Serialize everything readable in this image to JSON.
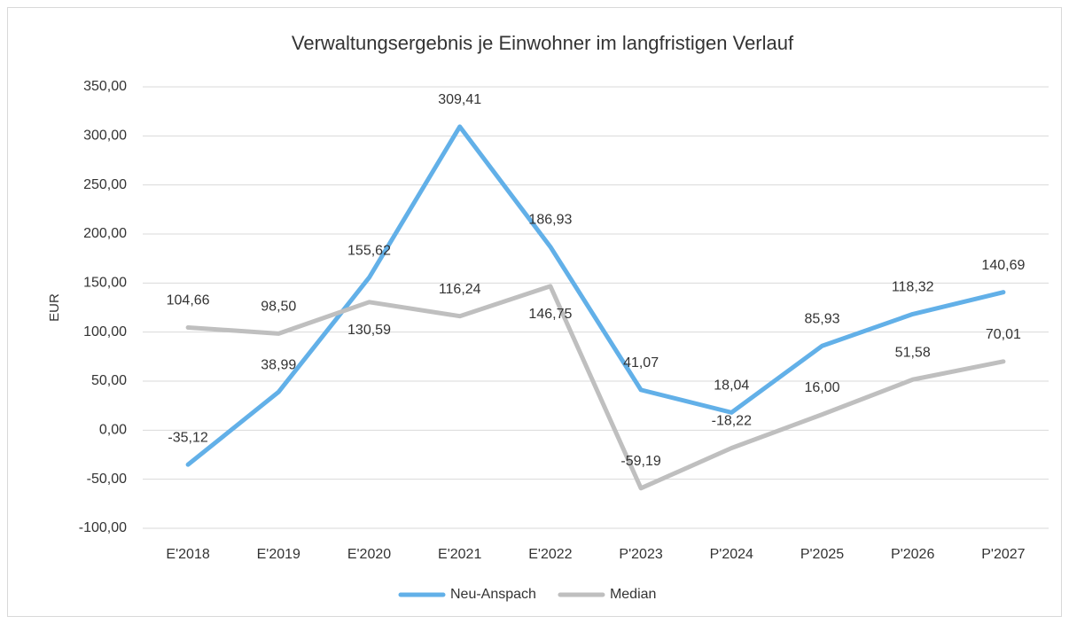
{
  "chart_data": {
    "type": "line",
    "title": "Verwaltungsergebnis je Einwohner im langfristigen Verlauf",
    "y_label": "EUR",
    "categories": [
      "E'2018",
      "E'2019",
      "E'2020",
      "E'2021",
      "E'2022",
      "P'2023",
      "P'2024",
      "P'2025",
      "P'2026",
      "P'2027"
    ],
    "series": [
      {
        "name": "Neu-Anspach",
        "color": "#62b0e8",
        "values": [
          -35.12,
          38.99,
          155.62,
          309.41,
          186.93,
          41.07,
          18.04,
          85.93,
          118.32,
          140.69
        ],
        "value_labels": [
          "-35,12",
          "38,99",
          "155,62",
          "309,41",
          "186,93",
          "41,07",
          "18,04",
          "85,93",
          "118,32",
          "140,69"
        ]
      },
      {
        "name": "Median",
        "color": "#bfbfbf",
        "values": [
          104.66,
          98.5,
          130.59,
          116.24,
          146.75,
          -59.19,
          -18.22,
          16.0,
          51.58,
          70.01
        ],
        "value_labels": [
          "104,66",
          "98,50",
          "130,59",
          "116,24",
          "146,75",
          "-59,19",
          "-18,22",
          "16,00",
          "51,58",
          "70,01"
        ]
      }
    ],
    "ylim": [
      -100,
      350
    ],
    "yticks": [
      {
        "value": -100,
        "label": "-100,00"
      },
      {
        "value": -50,
        "label": "-50,00"
      },
      {
        "value": 0,
        "label": "0,00"
      },
      {
        "value": 50,
        "label": "50,00"
      },
      {
        "value": 100,
        "label": "100,00"
      },
      {
        "value": 150,
        "label": "150,00"
      },
      {
        "value": 200,
        "label": "200,00"
      },
      {
        "value": 250,
        "label": "250,00"
      },
      {
        "value": 300,
        "label": "300,00"
      },
      {
        "value": 350,
        "label": "350,00"
      }
    ],
    "grid": true,
    "legend": "bottom"
  }
}
